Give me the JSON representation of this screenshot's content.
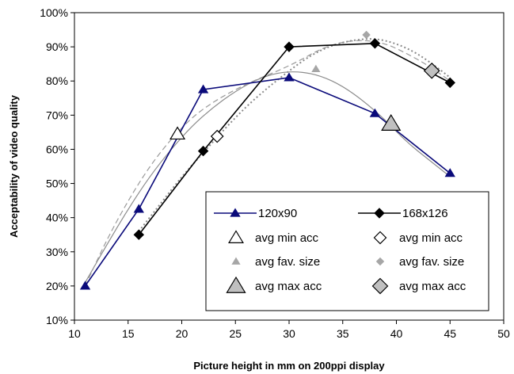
{
  "chart_data": {
    "type": "line",
    "xlabel": "Picture height in mm on 200ppi display",
    "ylabel": "Acceptability of video quality",
    "xlim": [
      10,
      50
    ],
    "ylim": [
      10,
      100
    ],
    "x_ticks": [
      10,
      15,
      20,
      25,
      30,
      35,
      40,
      45,
      50
    ],
    "y_ticks": [
      10,
      20,
      30,
      40,
      50,
      60,
      70,
      80,
      90,
      100
    ],
    "x_tick_labels": [
      "10",
      "15",
      "20",
      "25",
      "30",
      "35",
      "40",
      "45",
      "50"
    ],
    "y_tick_labels": [
      "10%",
      "20%",
      "30%",
      "40%",
      "50%",
      "60%",
      "70%",
      "80%",
      "90%",
      "100%"
    ],
    "grid": "none",
    "legend_position": "bottom-right",
    "series": [
      {
        "name": "120x90",
        "kind": "line",
        "marker": "filled-triangle",
        "color": "#0a0a7a",
        "x": [
          11,
          16,
          22,
          30,
          38,
          45
        ],
        "y": [
          20,
          42.5,
          77.5,
          81,
          70.5,
          53
        ]
      },
      {
        "name": "168x126",
        "kind": "line",
        "marker": "filled-diamond",
        "color": "#000000",
        "x": [
          16,
          22,
          30,
          38,
          45
        ],
        "y": [
          35,
          59.5,
          90,
          91,
          79.5
        ]
      },
      {
        "name": "avg min acc",
        "kind": "point",
        "marker": "open-triangle",
        "color": "#000000",
        "x": [
          19.6
        ],
        "y": [
          64.5
        ]
      },
      {
        "name": "avg min acc",
        "kind": "point",
        "marker": "open-diamond",
        "color": "#000000",
        "x": [
          23.3
        ],
        "y": [
          63.8
        ]
      },
      {
        "name": "avg fav. size",
        "kind": "point",
        "marker": "small-gray-triangle",
        "color": "#a6a6a6",
        "x": [
          32.5
        ],
        "y": [
          83.5
        ]
      },
      {
        "name": "avg fav. size",
        "kind": "point",
        "marker": "small-gray-diamond",
        "color": "#a6a6a6",
        "x": [
          37.2
        ],
        "y": [
          93.5
        ]
      },
      {
        "name": "avg max acc",
        "kind": "point",
        "marker": "large-gray-triangle",
        "color": "#c0c0c0",
        "x": [
          39.5
        ],
        "y": [
          67.5
        ]
      },
      {
        "name": "avg max acc",
        "kind": "point",
        "marker": "large-gray-diamond",
        "color": "#c0c0c0",
        "x": [
          43.3
        ],
        "y": [
          83
        ]
      }
    ],
    "trendlines": [
      {
        "style": "thin-solid-gray",
        "color": "#8c8c8c",
        "x": [
          11,
          13,
          15,
          17,
          19,
          21,
          23,
          25,
          27,
          29,
          31,
          33,
          35,
          37,
          39,
          41,
          43,
          45
        ],
        "y": [
          21,
          32,
          42.5,
          52,
          60,
          67,
          72.5,
          77,
          80.5,
          82.5,
          82.8,
          81.5,
          78.5,
          74,
          68.5,
          62,
          57,
          52
        ]
      },
      {
        "style": "dashed-gray",
        "color": "#9a9a9a",
        "x": [
          11,
          13,
          15,
          17,
          19,
          21,
          23,
          25,
          27,
          29,
          31,
          33,
          35,
          37,
          39,
          41,
          43,
          45
        ],
        "y": [
          20,
          33.5,
          45,
          55,
          63,
          69.5,
          74,
          77.5,
          80.5,
          83,
          86,
          89.5,
          91.5,
          92,
          91,
          88,
          84.5,
          80
        ]
      },
      {
        "style": "dotted-gray",
        "color": "#8a8a8a",
        "x": [
          16,
          18,
          20,
          22,
          24,
          26,
          28,
          30,
          32,
          34,
          36,
          38,
          40,
          42,
          44,
          45
        ],
        "y": [
          36,
          44,
          52,
          59,
          66,
          72.5,
          78,
          83,
          87.5,
          90.5,
          92,
          92.5,
          91,
          88,
          83.5,
          81
        ]
      }
    ]
  },
  "legend": {
    "items": [
      {
        "label": "120x90",
        "marker": "line-filled-triangle"
      },
      {
        "label": "168x126",
        "marker": "line-filled-diamond"
      },
      {
        "label": "avg min acc",
        "marker": "open-triangle"
      },
      {
        "label": "avg min acc",
        "marker": "open-diamond"
      },
      {
        "label": "avg fav. size",
        "marker": "small-gray-triangle"
      },
      {
        "label": "avg fav. size",
        "marker": "small-gray-diamond"
      },
      {
        "label": "avg max acc",
        "marker": "large-gray-triangle"
      },
      {
        "label": "avg max acc",
        "marker": "large-gray-diamond"
      }
    ]
  }
}
